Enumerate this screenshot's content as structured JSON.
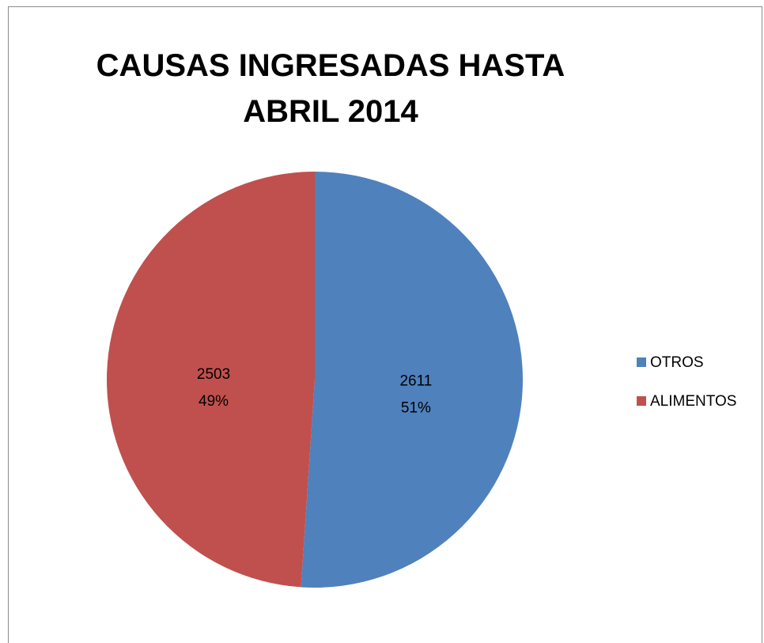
{
  "chart_data": {
    "type": "pie",
    "title": "CAUSAS INGRESADAS HASTA ABRIL 2014",
    "categories": [
      "OTROS",
      "ALIMENTOS"
    ],
    "values": [
      2611,
      2503
    ],
    "percent_labels": [
      "51%",
      "49%"
    ],
    "colors": [
      "#4f81bd",
      "#c0504d"
    ],
    "legend": "right"
  }
}
